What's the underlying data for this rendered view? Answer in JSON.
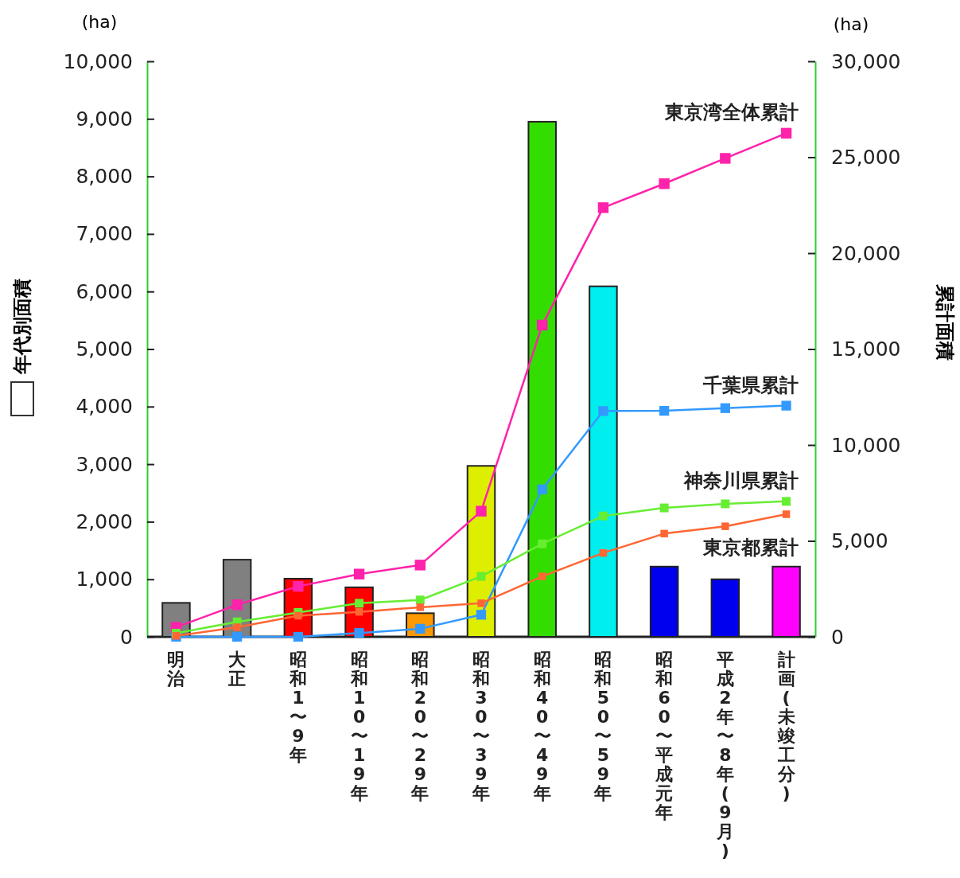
{
  "chart_data": {
    "type": "bar",
    "ylabel": "年代別面積",
    "y2label": "累計面積",
    "annotations": [
      "(ha)",
      "(ha)"
    ],
    "categories": [
      "明治",
      "大正",
      "昭和1〜9年",
      "昭和10〜19年",
      "昭和20〜29年",
      "昭和30〜39年",
      "昭和40〜49年",
      "昭和50〜59年",
      "昭和60〜平成元年",
      "平成2年〜8年(9月)",
      "計画(未竣工分)"
    ],
    "series": [
      {
        "colors": [
          "#808080",
          "#808080",
          "#ff0000",
          "#ff0000",
          "#ff9900",
          "#ddee00",
          "#33dd00",
          "#00eeee",
          "#0000ee",
          "#0000ee",
          "#ff00ff"
        ],
        "values": [
          590,
          1340,
          1010,
          860,
          410,
          2970,
          8950,
          6090,
          1220,
          1000,
          1220
        ]
      },
      {
        "type": "line",
        "axis": "y2",
        "name": "東京湾全体累計",
        "color": "#ff22aa",
        "values": [
          500,
          1670,
          2630,
          3270,
          3740,
          6550,
          16250,
          22370,
          23620,
          24940,
          26250
        ]
      },
      {
        "type": "line",
        "axis": "y2",
        "name": "千葉県累計",
        "color": "#3399ff",
        "values": [
          0,
          0,
          0,
          200,
          420,
          1150,
          7690,
          11770,
          11780,
          11920,
          12050
        ]
      },
      {
        "type": "line",
        "axis": "y2",
        "name": "神奈川県累計",
        "color": "#66ee33",
        "values": [
          190,
          780,
          1270,
          1750,
          1920,
          3150,
          4850,
          6300,
          6720,
          6930,
          7060
        ]
      },
      {
        "type": "line",
        "axis": "y2",
        "name": "東京都累計",
        "color": "#ff6633",
        "values": [
          50,
          500,
          1100,
          1300,
          1540,
          1750,
          3150,
          4370,
          5380,
          5760,
          6390
        ]
      }
    ],
    "ylim": [
      0,
      10000
    ],
    "yticks": [
      0,
      {
        "value": 1000,
        "label": "1,000"
      },
      {
        "value": 2000,
        "label": "2,000"
      },
      {
        "value": 3000,
        "label": "3,000"
      },
      {
        "value": 4000,
        "label": "4,000"
      },
      {
        "value": 5000,
        "label": "5,000"
      },
      {
        "value": 6000,
        "label": "6,000"
      },
      {
        "value": 7000,
        "label": "7,000"
      },
      {
        "value": 8000,
        "label": "8,000"
      },
      {
        "value": 9000,
        "label": "9,000"
      },
      {
        "value": 10000,
        "label": "10,000"
      }
    ],
    "y2lim": [
      0,
      30000
    ],
    "y2ticks": [
      0,
      {
        "value": 5000,
        "label": "5,000"
      },
      {
        "value": 10000,
        "label": "10,000"
      },
      {
        "value": 15000,
        "label": "15,000"
      },
      {
        "value": 20000,
        "label": "20,000"
      },
      {
        "value": 25000,
        "label": "25,000"
      },
      {
        "value": 30000,
        "label": "30,000"
      }
    ],
    "marker": "square",
    "grid": false,
    "legend": false
  }
}
